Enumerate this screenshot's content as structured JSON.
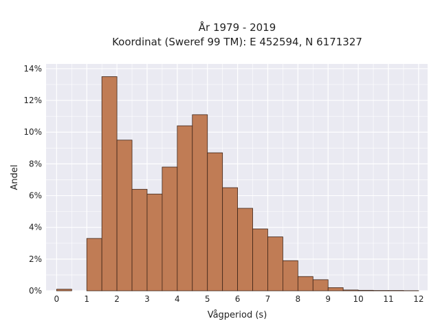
{
  "chart_data": {
    "type": "bar",
    "title_line1": "År 1979 - 2019",
    "title_line2": "Koordinat (Sweref 99 TM): E 452594, N 6171327",
    "xlabel": "Vågperiod (s)",
    "ylabel": "Andel",
    "bin_width": 0.5,
    "bin_starts": [
      0,
      0.5,
      1,
      1.5,
      2,
      2.5,
      3,
      3.5,
      4,
      4.5,
      5,
      5.5,
      6,
      6.5,
      7,
      7.5,
      8,
      8.5,
      9,
      9.5,
      10,
      10.5,
      11,
      11.5
    ],
    "values": [
      0.1,
      0,
      3.3,
      13.5,
      9.5,
      6.4,
      6.1,
      7.8,
      10.4,
      11.1,
      8.7,
      6.5,
      5.2,
      3.9,
      3.4,
      1.9,
      0.9,
      0.7,
      0.2,
      0.05,
      0.03,
      0.02,
      0.02,
      0.01
    ],
    "xlim": [
      -0.35,
      12.3
    ],
    "ylim": [
      0,
      14.3
    ],
    "xticks": [
      0,
      1,
      2,
      3,
      4,
      5,
      6,
      7,
      8,
      9,
      10,
      11,
      12
    ],
    "yticks": [
      0,
      2,
      4,
      6,
      8,
      10,
      12,
      14
    ],
    "ytick_suffix": "%",
    "grid": true,
    "colors": {
      "bar_fill": "#c07c55",
      "bar_edge": "#3d2418",
      "plot_bg": "#eaeaf2",
      "grid": "#ffffff"
    }
  }
}
